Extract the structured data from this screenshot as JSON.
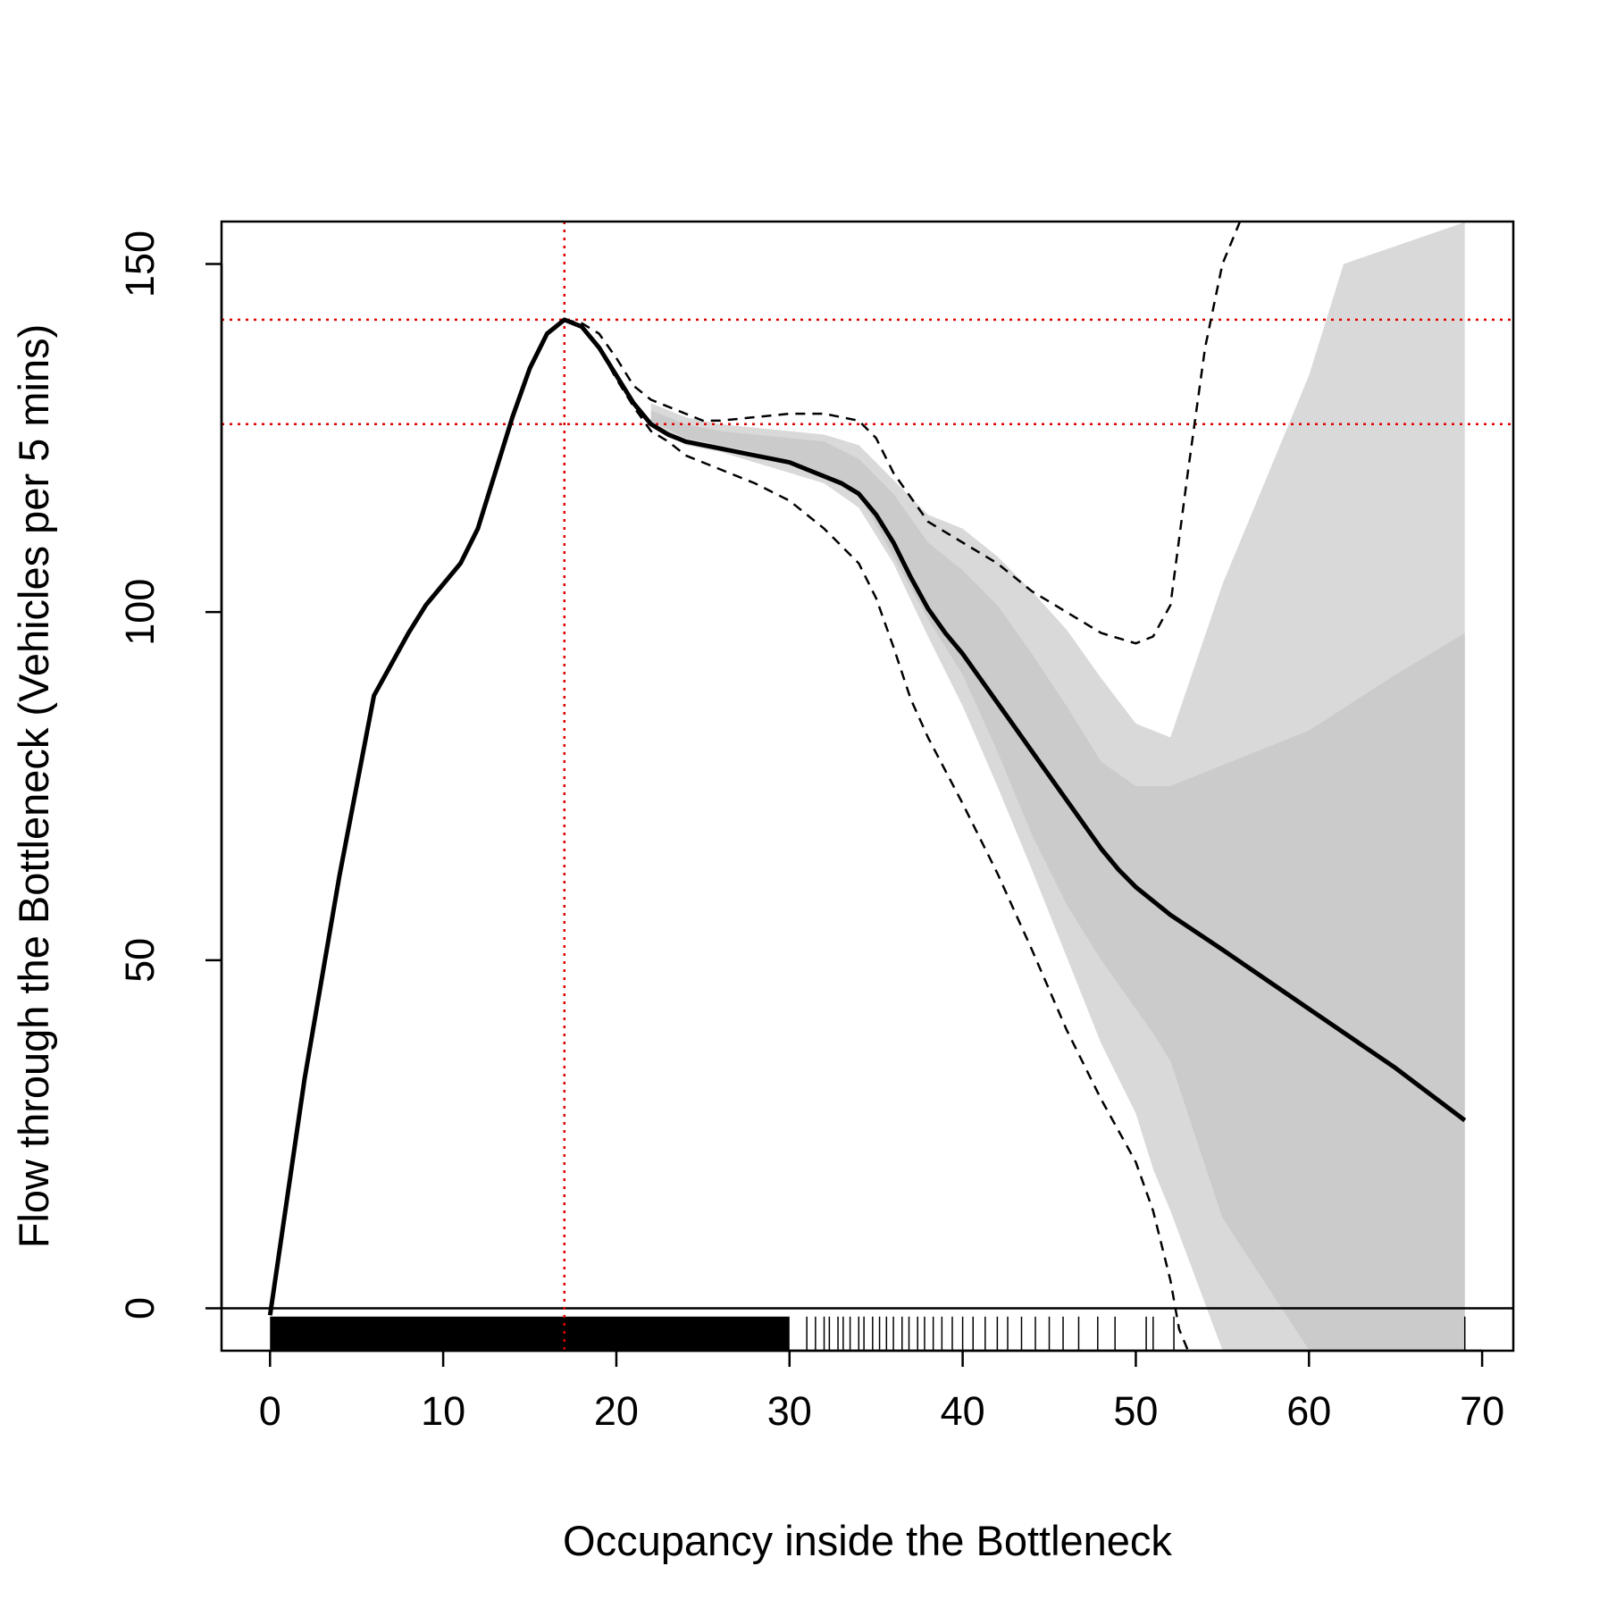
{
  "chart_data": {
    "type": "line",
    "title": "",
    "xlabel": "Occupancy inside the Bottleneck",
    "ylabel": "Flow through the Bottleneck (Vehicles per 5 mins)",
    "xlim": [
      -2.8,
      71.8
    ],
    "ylim": [
      -6.1,
      156.1
    ],
    "x_ticks": [
      0,
      10,
      20,
      30,
      40,
      50,
      60,
      70
    ],
    "y_ticks": [
      0,
      50,
      100,
      150
    ],
    "grid": false,
    "legend": "none",
    "colors": {
      "fit": "#000000",
      "dashed_band": "#000000",
      "outer_band": "#d9d9d9",
      "inner_band": "#cbcbcb",
      "reference_lines": "#e00000",
      "zero_line": "#000000"
    },
    "series": [
      {
        "role": "fit",
        "style": "solid",
        "x": [
          0,
          2,
          4,
          6,
          8,
          9,
          10,
          11,
          12,
          13,
          14,
          15,
          16,
          17,
          18,
          19,
          20,
          21,
          22,
          23,
          24,
          25,
          26,
          27,
          28,
          29,
          30,
          31,
          32,
          33,
          34,
          35,
          36,
          37,
          38,
          39,
          40,
          42,
          44,
          46,
          48,
          49,
          50,
          51,
          52,
          55,
          60,
          65,
          69
        ],
        "y": [
          -1,
          33,
          62,
          88,
          97,
          101,
          104,
          107,
          112,
          120,
          128,
          135,
          140,
          142,
          141,
          138,
          134,
          130,
          127,
          125.5,
          124.5,
          124,
          123.5,
          123,
          122.5,
          122,
          121.5,
          120.5,
          119.5,
          118.5,
          117,
          114,
          110,
          105,
          100.5,
          97,
          94,
          87,
          80,
          73,
          66,
          63,
          60.5,
          58.5,
          56.5,
          51.5,
          43,
          34.5,
          27
        ]
      },
      {
        "role": "upper_dashed",
        "style": "dashed",
        "x": [
          17,
          18,
          19,
          20,
          21,
          22,
          23,
          24,
          25,
          26,
          28,
          30,
          32,
          34,
          35,
          36,
          38,
          40,
          42,
          44,
          46,
          48,
          50,
          51,
          52,
          53,
          54,
          55,
          56
        ],
        "y": [
          142,
          141.5,
          140,
          136.5,
          132.5,
          130.5,
          129.5,
          128.5,
          127.5,
          127.5,
          128,
          128.5,
          128.5,
          127.5,
          125,
          120,
          113,
          110,
          107,
          103,
          100,
          97,
          95.5,
          96.5,
          101,
          120,
          138,
          150,
          156
        ]
      },
      {
        "role": "lower_dashed",
        "style": "dashed",
        "x": [
          17,
          18,
          19,
          20,
          21,
          22,
          23,
          24,
          25,
          26,
          28,
          30,
          32,
          34,
          35,
          36,
          37,
          38,
          40,
          42,
          44,
          46,
          48,
          50,
          51,
          52,
          52.5,
          53
        ],
        "y": [
          142,
          141,
          138,
          133.5,
          129.5,
          126,
          124.5,
          122.5,
          121.5,
          120.5,
          118.5,
          116,
          112,
          107,
          102,
          95,
          87.5,
          82,
          72.5,
          62.5,
          51.5,
          40,
          30,
          21,
          14,
          4,
          -3,
          -6
        ]
      }
    ],
    "bands": [
      {
        "role": "outer_band",
        "x": [
          22,
          24,
          26,
          28,
          30,
          32,
          34,
          36,
          38,
          40,
          42,
          44,
          46,
          48,
          50,
          51,
          52,
          55,
          60,
          62,
          69
        ],
        "upper": [
          130,
          128,
          127,
          126.5,
          126,
          125.5,
          124,
          119,
          114,
          112,
          108,
          103,
          97.5,
          90.5,
          84,
          83,
          82,
          104,
          134,
          150,
          156
        ],
        "lower": [
          127,
          124,
          123,
          121.5,
          120,
          118.5,
          115,
          107,
          96.5,
          86.5,
          75,
          63,
          50.5,
          38,
          28,
          20,
          14,
          -6,
          -6,
          -6,
          -6
        ]
      },
      {
        "role": "inner_band",
        "x": [
          22,
          24,
          26,
          28,
          30,
          32,
          34,
          36,
          38,
          40,
          42,
          44,
          46,
          48,
          50,
          51,
          52,
          55,
          60,
          65,
          69
        ],
        "upper": [
          129,
          127,
          126,
          125.5,
          125,
          124.5,
          122,
          117,
          110,
          106,
          101,
          94,
          86.5,
          78.5,
          75,
          75,
          75,
          78,
          83,
          91,
          97
        ],
        "lower": [
          127.5,
          125,
          124,
          123,
          121.5,
          119.5,
          117,
          108,
          99,
          91,
          80,
          68,
          58,
          50,
          43,
          39.5,
          35.5,
          13,
          -6,
          -6,
          -6
        ]
      }
    ],
    "reference_lines": {
      "vertical_x": [
        17
      ],
      "horizontal_y": [
        142,
        127
      ],
      "zero_y": [
        0
      ]
    },
    "rug": {
      "dense_from": 0,
      "dense_to": 30,
      "sparse_x": [
        31,
        31.5,
        32,
        32.3,
        32.8,
        33.1,
        33.5,
        34,
        34.3,
        34.8,
        35.2,
        35.6,
        36,
        36.5,
        36.9,
        37.4,
        37.8,
        38.3,
        38.8,
        39.4,
        40,
        40.6,
        41.3,
        42,
        42.6,
        43.4,
        44.2,
        45,
        45.8,
        46.7,
        47.8,
        48.8,
        50.6,
        51,
        52.2,
        69
      ]
    }
  }
}
